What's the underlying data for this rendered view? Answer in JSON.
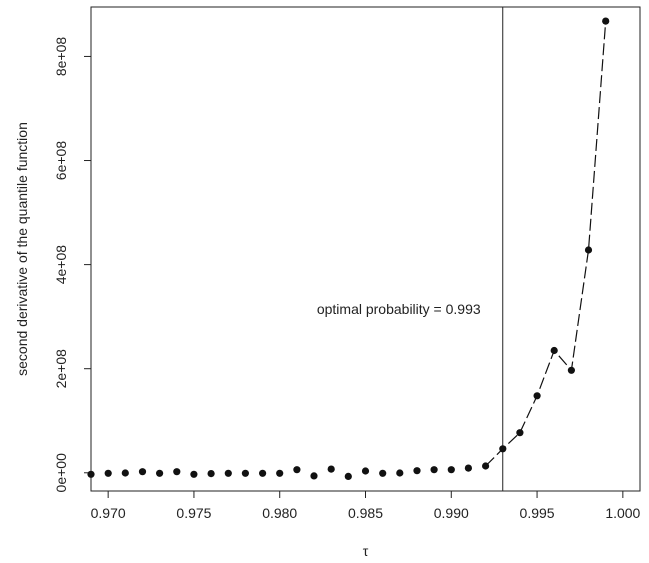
{
  "chart_data": {
    "type": "scatter",
    "xlabel": "τ",
    "ylabel": "second derivative of the quantile function",
    "xlim": [
      0.969,
      1.001
    ],
    "ylim": [
      -35000000.0,
      895000000.0
    ],
    "x_ticks": [
      0.97,
      0.975,
      0.98,
      0.985,
      0.99,
      0.995,
      1.0
    ],
    "x_tick_labels": [
      "0.970",
      "0.975",
      "0.980",
      "0.985",
      "0.990",
      "0.995",
      "1.000"
    ],
    "y_ticks": [
      0,
      200000000,
      400000000,
      600000000,
      800000000
    ],
    "y_tick_labels": [
      "0e+00",
      "2e+08",
      "4e+08",
      "6e+08",
      "8e+08"
    ],
    "grid": false,
    "vline_x": 0.993,
    "annotation": "optimal probability = 0.993",
    "line_start_x": 0.992,
    "points": [
      [
        0.969,
        -3000000
      ],
      [
        0.97,
        -1000000
      ],
      [
        0.971,
        -500000
      ],
      [
        0.972,
        2000000
      ],
      [
        0.973,
        -1000000
      ],
      [
        0.974,
        2000000
      ],
      [
        0.975,
        -3000000
      ],
      [
        0.976,
        -1500000
      ],
      [
        0.977,
        -1000000
      ],
      [
        0.978,
        -1000000
      ],
      [
        0.979,
        -1000000
      ],
      [
        0.98,
        -1000000
      ],
      [
        0.981,
        6000000
      ],
      [
        0.982,
        -6000000
      ],
      [
        0.983,
        7000000
      ],
      [
        0.984,
        -7000000
      ],
      [
        0.985,
        3500000
      ],
      [
        0.986,
        -1000000
      ],
      [
        0.987,
        -500000
      ],
      [
        0.988,
        4000000
      ],
      [
        0.989,
        6000000
      ],
      [
        0.99,
        6000000
      ],
      [
        0.991,
        9000000
      ],
      [
        0.992,
        13000000
      ],
      [
        0.993,
        46000000
      ],
      [
        0.994,
        77000000
      ],
      [
        0.995,
        148000000
      ],
      [
        0.996,
        235000000
      ],
      [
        0.997,
        197000000
      ],
      [
        0.998,
        428000000
      ],
      [
        0.999,
        868000000
      ]
    ]
  }
}
